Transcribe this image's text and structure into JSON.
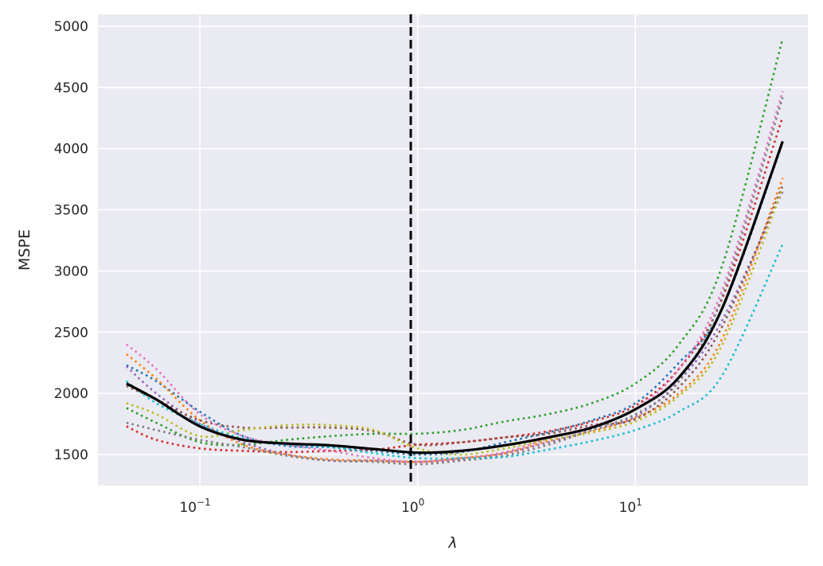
{
  "chart_data": {
    "type": "line",
    "title": "",
    "xlabel": "λ",
    "ylabel": "MSPE",
    "xscale": "log",
    "xlim": [
      0.034,
      62
    ],
    "ylim": [
      1246,
      5098
    ],
    "grid": true,
    "legend": "none",
    "x_ticks": [
      {
        "value": 0.1,
        "base": "10",
        "exp": "−1"
      },
      {
        "value": 1,
        "base": "10",
        "exp": "0"
      },
      {
        "value": 10,
        "base": "10",
        "exp": "1"
      }
    ],
    "y_ticks": [
      "1500",
      "2000",
      "2500",
      "3000",
      "3500",
      "4000",
      "4500",
      "5000"
    ],
    "x": [
      0.046,
      0.063,
      0.1,
      0.158,
      0.251,
      0.398,
      0.631,
      1.0,
      1.585,
      2.512,
      3.981,
      6.31,
      10,
      15.85,
      25.12,
      47.5
    ],
    "series": [
      {
        "color": "#1f77b4",
        "style": "dotted",
        "values": [
          2230,
          2100,
          1850,
          1650,
          1570,
          1560,
          1530,
          1500,
          1520,
          1600,
          1680,
          1780,
          1920,
          2250,
          2700,
          4050
        ]
      },
      {
        "color": "#ff7f0e",
        "style": "dotted",
        "values": [
          2320,
          2120,
          1780,
          1580,
          1500,
          1460,
          1450,
          1440,
          1470,
          1510,
          1610,
          1690,
          1800,
          2000,
          2450,
          3760
        ]
      },
      {
        "color": "#2ca02c",
        "style": "dotted",
        "values": [
          1880,
          1760,
          1600,
          1580,
          1620,
          1650,
          1670,
          1670,
          1700,
          1770,
          1830,
          1920,
          2080,
          2400,
          3050,
          4900
        ]
      },
      {
        "color": "#d62728",
        "style": "dotted",
        "values": [
          1730,
          1620,
          1550,
          1530,
          1520,
          1530,
          1540,
          1580,
          1600,
          1640,
          1690,
          1770,
          1900,
          2200,
          2780,
          4260
        ]
      },
      {
        "color": "#9467bd",
        "style": "dotted",
        "values": [
          2220,
          2000,
          1750,
          1600,
          1500,
          1450,
          1450,
          1440,
          1460,
          1510,
          1600,
          1700,
          1810,
          2100,
          2600,
          3650
        ]
      },
      {
        "color": "#8c564b",
        "style": "dotted",
        "values": [
          2060,
          1950,
          1780,
          1720,
          1720,
          1720,
          1690,
          1580,
          1600,
          1640,
          1670,
          1740,
          1790,
          2050,
          2550,
          3700
        ]
      },
      {
        "color": "#e377c2",
        "style": "dotted",
        "values": [
          2400,
          2200,
          1830,
          1650,
          1580,
          1530,
          1470,
          1440,
          1470,
          1520,
          1630,
          1730,
          1870,
          2200,
          2850,
          4470
        ]
      },
      {
        "color": "#7f7f7f",
        "style": "dotted",
        "values": [
          1760,
          1700,
          1620,
          1560,
          1490,
          1450,
          1440,
          1420,
          1450,
          1490,
          1580,
          1700,
          1830,
          2100,
          2800,
          4420
        ]
      },
      {
        "color": "#bcbd22",
        "style": "dotted",
        "values": [
          1920,
          1830,
          1650,
          1700,
          1740,
          1740,
          1700,
          1550,
          1500,
          1550,
          1620,
          1680,
          1770,
          1980,
          2400,
          3680
        ]
      },
      {
        "color": "#17becf",
        "style": "dotted",
        "values": [
          2100,
          1920,
          1750,
          1630,
          1580,
          1560,
          1510,
          1470,
          1470,
          1480,
          1540,
          1610,
          1700,
          1850,
          2150,
          3220
        ]
      },
      {
        "color": "#000000",
        "style": "solid",
        "values": [
          2080,
          1950,
          1730,
          1620,
          1590,
          1575,
          1545,
          1515,
          1530,
          1575,
          1640,
          1720,
          1870,
          2130,
          2700,
          4060
        ]
      }
    ],
    "vline": {
      "x": 0.93,
      "color": "#000000",
      "style": "dashed"
    },
    "colors": {
      "background": "#eaeaf2",
      "grid": "#ffffff"
    }
  }
}
